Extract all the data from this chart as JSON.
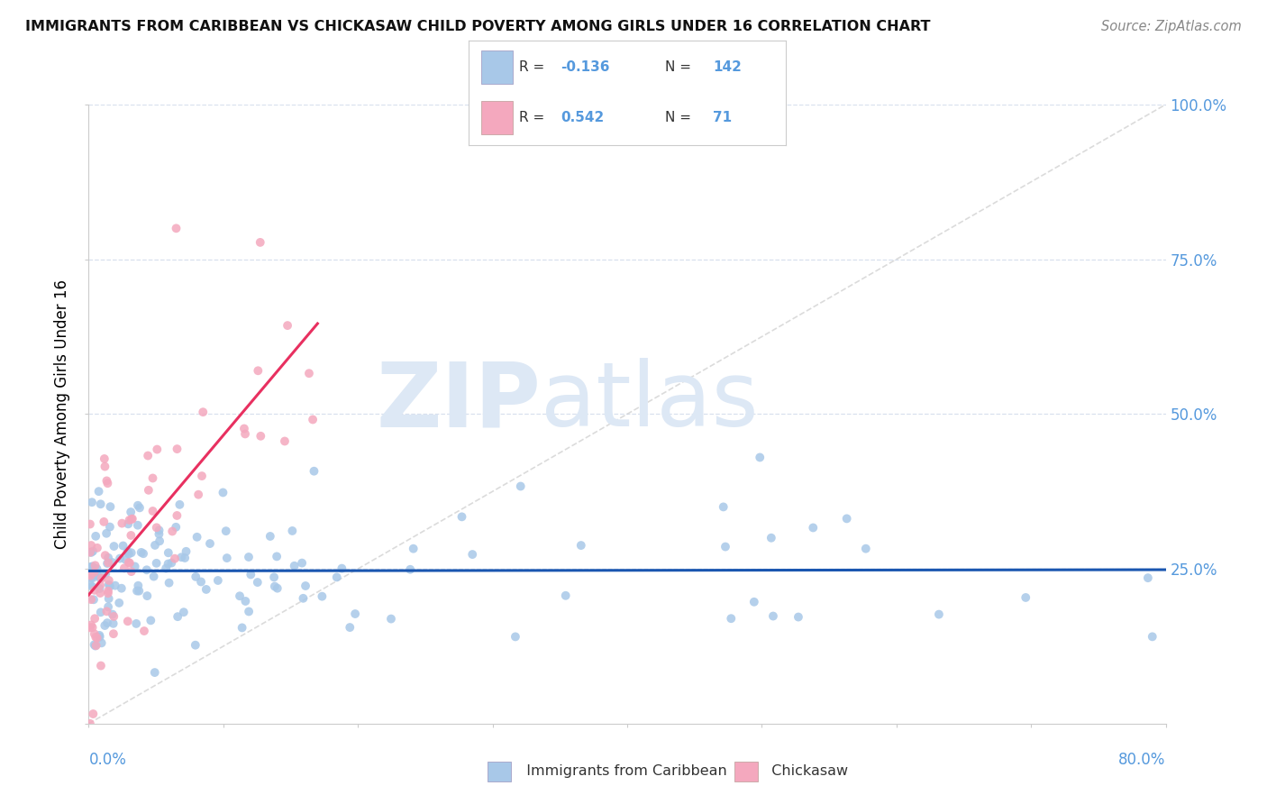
{
  "title": "IMMIGRANTS FROM CARIBBEAN VS CHICKASAW CHILD POVERTY AMONG GIRLS UNDER 16 CORRELATION CHART",
  "source": "Source: ZipAtlas.com",
  "ylabel": "Child Poverty Among Girls Under 16",
  "xmin": 0.0,
  "xmax": 0.8,
  "ymin": 0.0,
  "ymax": 1.0,
  "r_blue": -0.136,
  "n_blue": 142,
  "r_pink": 0.542,
  "n_pink": 71,
  "blue_color": "#a8c8e8",
  "pink_color": "#f4a8be",
  "blue_line_color": "#1a56b0",
  "pink_line_color": "#e83060",
  "ref_line_color": "#cccccc",
  "grid_color": "#d8e0ee",
  "watermark": "ZIPatlas",
  "watermark_color": "#ccdff5",
  "right_tick_color": "#5599dd",
  "title_color": "#111111",
  "source_color": "#888888"
}
